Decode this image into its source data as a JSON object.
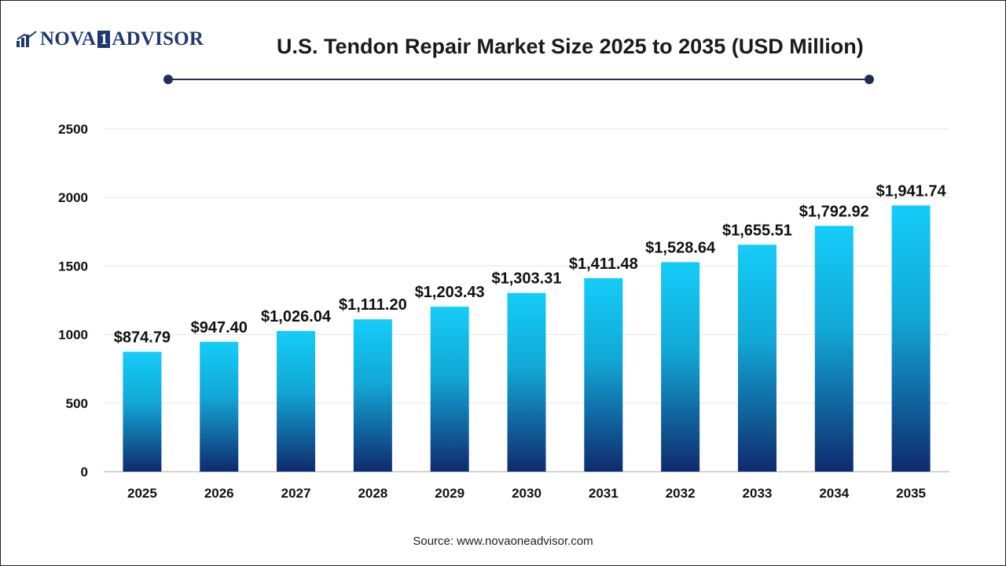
{
  "brand": {
    "logo_text_1": "NOVA",
    "logo_box": "1",
    "logo_text_2": "ADVISOR",
    "color": "#1f3a6e"
  },
  "source": "Source: www.novaoneadvisor.com",
  "colors": {
    "bar_top": "#14cdf7",
    "bar_mid": "#12a8d6",
    "bar_bottom": "#0f2a6e",
    "rule": "#1f2f57",
    "grid": "#e6e6e6"
  },
  "chart_data": {
    "type": "bar",
    "title": "U.S. Tendon Repair Market Size 2025 to 2035  (USD Million)",
    "xlabel": "",
    "ylabel": "",
    "categories": [
      "2025",
      "2026",
      "2027",
      "2028",
      "2029",
      "2030",
      "2031",
      "2032",
      "2033",
      "2034",
      "2035"
    ],
    "values": [
      874.79,
      947.4,
      1026.04,
      1111.2,
      1203.43,
      1303.31,
      1411.48,
      1528.64,
      1655.51,
      1792.92,
      1941.74
    ],
    "data_labels": [
      "$874.79",
      "$947.40",
      "$1,026.04",
      "$1,111.20",
      "$1,203.43",
      "$1,303.31",
      "$1,411.48",
      "$1,528.64",
      "$1,655.51",
      "$1,792.92",
      "$1,941.74"
    ],
    "ylim": [
      0,
      2500
    ],
    "yticks": [
      0,
      500,
      1000,
      1500,
      2000,
      2500
    ],
    "grid": true,
    "legend": "none"
  }
}
